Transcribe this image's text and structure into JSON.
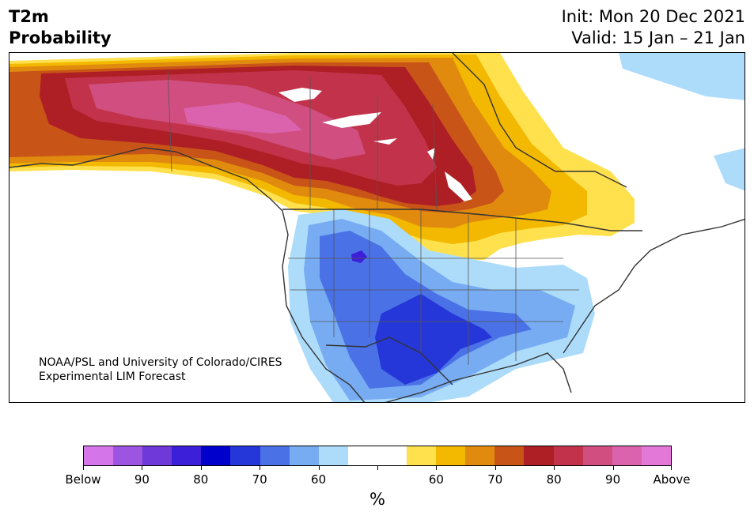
{
  "title": {
    "left_line1": "T2m",
    "left_line2": "Probability",
    "right_line1": "Init: Mon 20 Dec 2021",
    "right_line2": "Valid: 15 Jan – 21 Jan"
  },
  "credit": {
    "line1": "NOAA/PSL and University of Colorado/CIRES",
    "line2": "Experimental LIM Forecast"
  },
  "colorbar": {
    "colors": [
      "#d575ea",
      "#9c55e0",
      "#6e39d8",
      "#3c1fd8",
      "#0000cd",
      "#2637d9",
      "#4a72e6",
      "#77acf2",
      "#addcfb",
      "#ffffff",
      "#ffffff",
      "#ffe04d",
      "#f3b800",
      "#e08a0e",
      "#c85418",
      "#ae1f25",
      "#c2334b",
      "#d04f80",
      "#db62ad",
      "#e478d9"
    ],
    "tick_labels": [
      "Below",
      "90",
      "80",
      "70",
      "60",
      "",
      "60",
      "70",
      "80",
      "90",
      "Above"
    ],
    "unit": "%"
  }
}
